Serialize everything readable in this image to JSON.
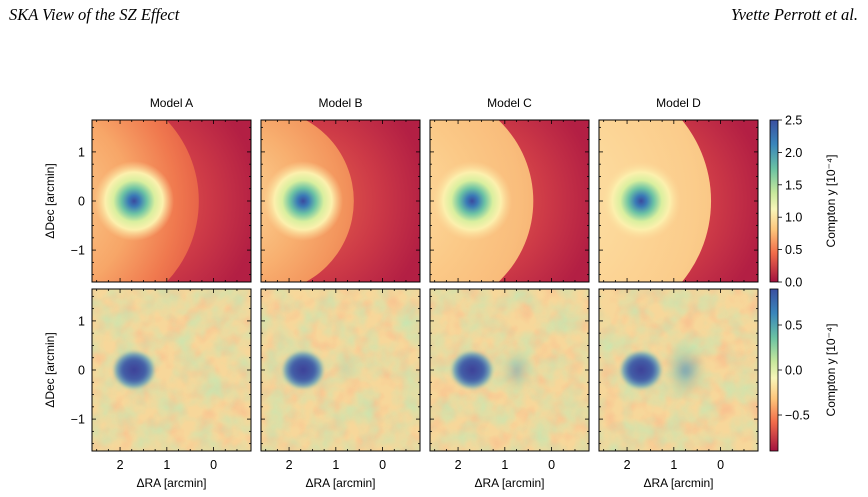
{
  "header": {
    "left_title": "SKA View of the SZ Effect",
    "right_author": "Yvette Perrott et al."
  },
  "figure": {
    "panel_titles": [
      "Model A",
      "Model B",
      "Model C",
      "Model D"
    ],
    "ylabel": "ΔDec [arcmin]",
    "xlabel": "ΔRA [arcmin]",
    "colorbar_label": "Compton y [10⁻⁴]",
    "x_ticks": [
      "2",
      "1",
      "0"
    ],
    "y_ticks": [
      "1",
      "0",
      "−1"
    ],
    "top_colorbar_ticks": [
      "2.5",
      "2.0",
      "1.5",
      "1.0",
      "0.5",
      "0.0"
    ],
    "bottom_colorbar_ticks": [
      "0.5",
      "0.0",
      "−0.5"
    ]
  },
  "chart_data": [
    {
      "type": "heatmap",
      "row": "top",
      "panels": [
        "Model A",
        "Model B",
        "Model C",
        "Model D"
      ],
      "xlabel": "ΔRA [arcmin]",
      "ylabel": "ΔDec [arcmin]",
      "colorbar_label": "Compton y [10⁻⁴]",
      "color_range": [
        0.0,
        2.5
      ],
      "color_ticks": [
        0.0,
        0.5,
        1.0,
        1.5,
        2.0,
        2.5
      ],
      "colormap": "Spectral",
      "x_range": [
        2.6,
        -0.8
      ],
      "y_range": [
        -1.65,
        1.65
      ],
      "x_ticks": [
        2,
        1,
        0
      ],
      "y_ticks": [
        1,
        0,
        -1
      ]
    },
    {
      "type": "heatmap",
      "row": "bottom",
      "panels": [
        "Model A",
        "Model B",
        "Model C",
        "Model D"
      ],
      "xlabel": "ΔRA [arcmin]",
      "ylabel": "ΔDec [arcmin]",
      "colorbar_label": "Compton y [10⁻⁴]",
      "color_range": [
        -0.9,
        0.9
      ],
      "color_ticks": [
        -0.5,
        0.0,
        0.5
      ],
      "colormap": "Spectral",
      "x_range": [
        2.6,
        -0.8
      ],
      "y_range": [
        -1.65,
        1.65
      ],
      "x_ticks": [
        2,
        1,
        0
      ],
      "y_ticks": [
        1,
        0,
        -1
      ]
    }
  ]
}
